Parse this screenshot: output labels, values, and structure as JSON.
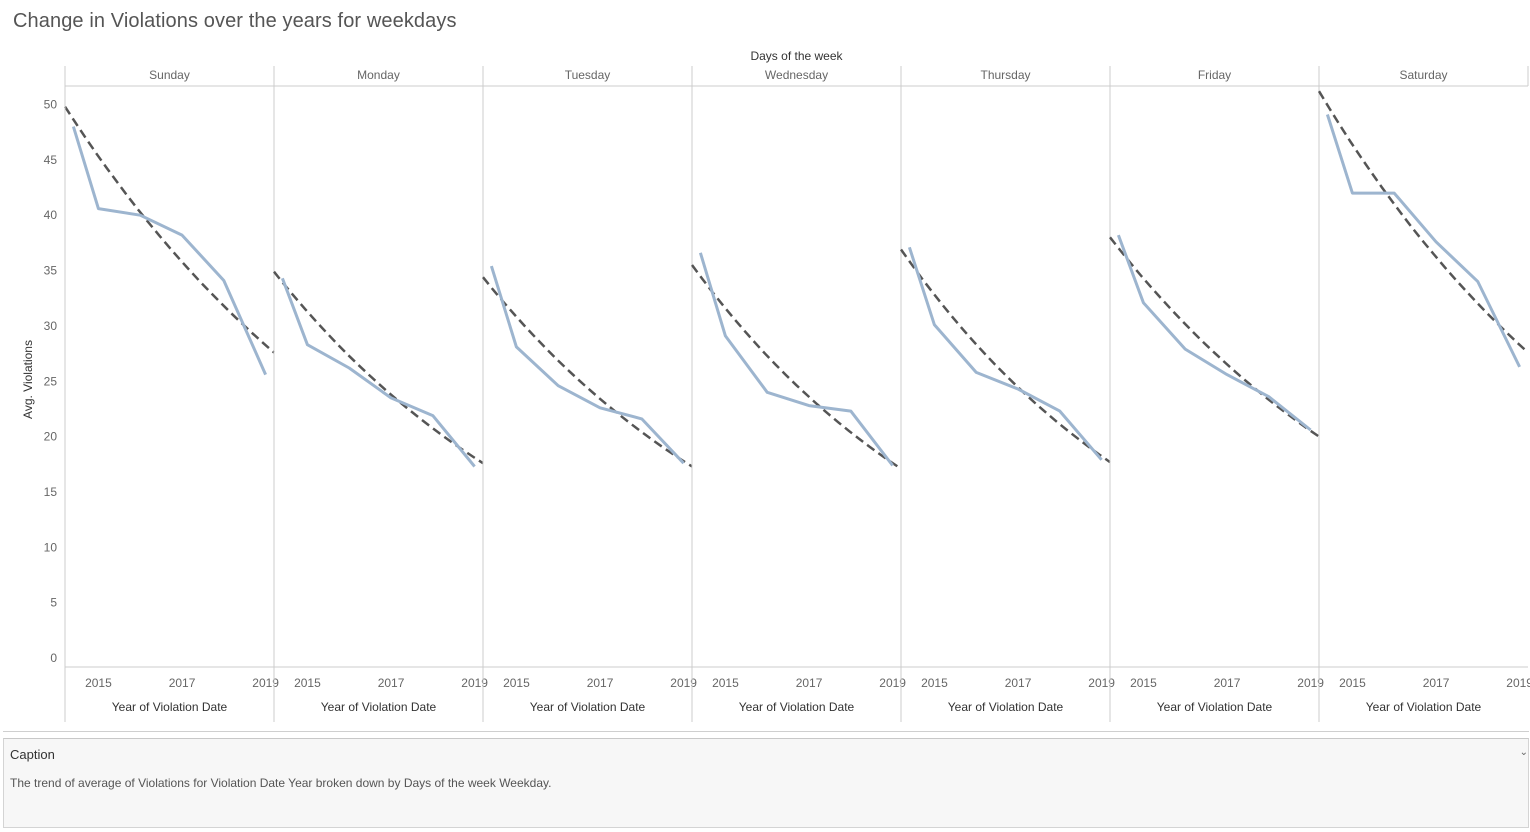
{
  "title": "Change in Violations over the years for weekdays",
  "caption": {
    "header": "Caption",
    "toggle_icon": "chevron-down-icon",
    "text": "The trend of average of Violations for Violation Date Year broken down by Days of the week Weekday."
  },
  "colors": {
    "series_line": "#9db5cf",
    "trend_line": "#555555",
    "gridline": "#cccccc"
  },
  "chart_data": {
    "type": "line",
    "column_header_title": "Days of the week",
    "ylabel": "Avg. Violations",
    "xlabel": "Year of Violation Date",
    "ylim": [
      0,
      52
    ],
    "yticks": [
      0,
      5,
      10,
      15,
      20,
      25,
      30,
      35,
      40,
      45,
      50
    ],
    "xlim": [
      2014.2,
      2019.2
    ],
    "xticks": [
      2015,
      2017,
      2019
    ],
    "x": [
      2014.4,
      2015.0,
      2016.0,
      2017.0,
      2018.0,
      2019.0
    ],
    "trend_line": "dashed exponential",
    "panels": [
      {
        "name": "Sunday",
        "values": [
          48.0,
          40.6,
          40.0,
          38.2,
          34.1,
          25.6
        ],
        "trend": [
          49.8,
          27.6
        ]
      },
      {
        "name": "Monday",
        "values": [
          34.3,
          28.3,
          26.2,
          23.5,
          21.9,
          17.3
        ],
        "trend": [
          34.9,
          17.6
        ]
      },
      {
        "name": "Tuesday",
        "values": [
          35.4,
          28.1,
          24.6,
          22.6,
          21.6,
          17.6
        ],
        "trend": [
          34.4,
          17.3
        ]
      },
      {
        "name": "Wednesday",
        "values": [
          36.6,
          29.1,
          24.0,
          22.8,
          22.3,
          17.4
        ],
        "trend": [
          35.5,
          17.1
        ]
      },
      {
        "name": "Thursday",
        "values": [
          37.1,
          30.1,
          25.8,
          24.3,
          22.3,
          17.9
        ],
        "trend": [
          36.9,
          17.7
        ]
      },
      {
        "name": "Friday",
        "values": [
          38.2,
          32.1,
          27.9,
          25.6,
          23.6,
          20.6
        ],
        "trend": [
          38.0,
          20.0
        ]
      },
      {
        "name": "Saturday",
        "values": [
          49.1,
          42.0,
          42.0,
          37.6,
          34.0,
          26.3
        ],
        "trend": [
          51.2,
          27.6
        ]
      }
    ]
  }
}
